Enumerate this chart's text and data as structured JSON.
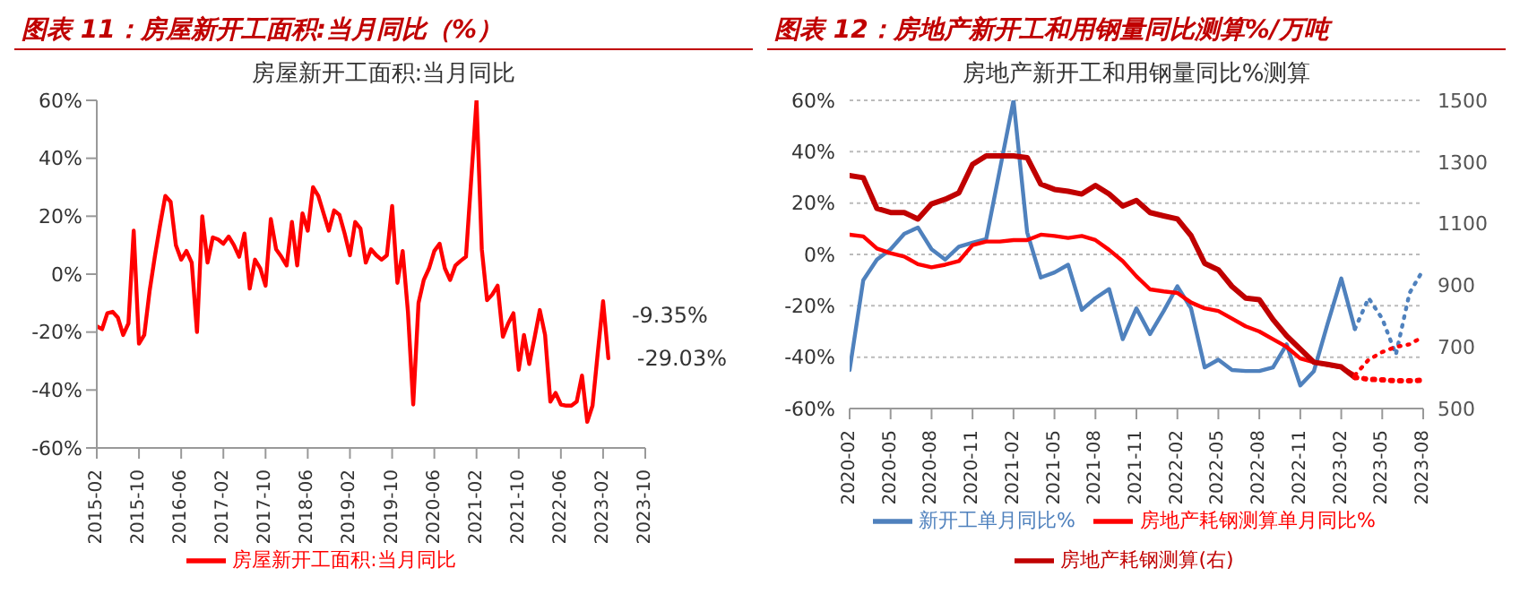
{
  "chart_data": [
    {
      "type": "line",
      "title": "图表 11：房屋新开工面积:当月同比（%）",
      "subtitle": "房屋新开工面积:当月同比",
      "legend": "bottom",
      "x": [
        "2015-02",
        "2015-03",
        "2015-04",
        "2015-05",
        "2015-06",
        "2015-07",
        "2015-08",
        "2015-09",
        "2015-10",
        "2015-11",
        "2015-12",
        "2016-01",
        "2016-02",
        "2016-03",
        "2016-04",
        "2016-05",
        "2016-06",
        "2016-07",
        "2016-08",
        "2016-09",
        "2016-10",
        "2016-11",
        "2016-12",
        "2017-01",
        "2017-02",
        "2017-03",
        "2017-04",
        "2017-05",
        "2017-06",
        "2017-07",
        "2017-08",
        "2017-09",
        "2017-10",
        "2017-11",
        "2017-12",
        "2018-01",
        "2018-02",
        "2018-03",
        "2018-04",
        "2018-05",
        "2018-06",
        "2018-07",
        "2018-08",
        "2018-09",
        "2018-10",
        "2018-11",
        "2018-12",
        "2019-01",
        "2019-02",
        "2019-03",
        "2019-04",
        "2019-05",
        "2019-06",
        "2019-07",
        "2019-08",
        "2019-09",
        "2019-10",
        "2019-11",
        "2019-12",
        "2020-01",
        "2020-02",
        "2020-03",
        "2020-04",
        "2020-05",
        "2020-06",
        "2020-07",
        "2020-08",
        "2020-09",
        "2020-10",
        "2020-11",
        "2020-12",
        "2021-01",
        "2021-02",
        "2021-03",
        "2021-04",
        "2021-05",
        "2021-06",
        "2021-07",
        "2021-08",
        "2021-09",
        "2021-10",
        "2021-11",
        "2021-12",
        "2022-01",
        "2022-02",
        "2022-03",
        "2022-04",
        "2022-05",
        "2022-06",
        "2022-07",
        "2022-08",
        "2022-09",
        "2022-10",
        "2022-11",
        "2022-12",
        "2023-01",
        "2023-02",
        "2023-03"
      ],
      "series": [
        {
          "name": "房屋新开工面积:当月同比",
          "color": "#ff0000",
          "values": [
            -18,
            -19,
            -13.5,
            -13,
            -15,
            -21,
            -17,
            15,
            -24,
            -21,
            -6,
            6,
            17,
            27,
            25,
            10,
            5,
            8,
            4,
            -20,
            20,
            4,
            12.7,
            12,
            10.5,
            13,
            10,
            6,
            14,
            -5,
            5,
            2,
            -4,
            19,
            8.6,
            6,
            3,
            18,
            3,
            21,
            15,
            30,
            27,
            21,
            15,
            22,
            20.5,
            14,
            6.5,
            18,
            15.7,
            4,
            8.6,
            6.5,
            5,
            6.5,
            23.5,
            -3,
            8,
            -13,
            -45,
            -10,
            -2,
            2,
            8,
            10.5,
            2,
            -2,
            3,
            4.6,
            6,
            33,
            60,
            8.6,
            -9,
            -7,
            -4,
            -21.6,
            -17,
            -13.5,
            -33,
            -21,
            -31,
            -22,
            -12.4,
            -21,
            -44,
            -41,
            -45,
            -45.4,
            -45.4,
            -44,
            -35,
            -51,
            -45.4,
            -27,
            -9.35,
            -29.03
          ]
        }
      ],
      "xlim": [
        "2015-02",
        "2023-10"
      ],
      "xticks": [
        "2015-02",
        "2015-10",
        "2016-06",
        "2017-02",
        "2017-10",
        "2018-06",
        "2019-02",
        "2019-10",
        "2020-06",
        "2021-02",
        "2021-10",
        "2022-06",
        "2023-02",
        "2023-10"
      ],
      "ylim": [
        -60,
        60
      ],
      "yticks": [
        {
          "value": -60,
          "label": "-60%"
        },
        {
          "value": -40,
          "label": "-40%"
        },
        {
          "value": -20,
          "label": "-20%"
        },
        {
          "value": 0,
          "label": "0%"
        },
        {
          "value": 20,
          "label": "20%"
        },
        {
          "value": 40,
          "label": "40%"
        },
        {
          "value": 60,
          "label": "60%"
        }
      ],
      "annotations": [
        {
          "text": "-9.35%",
          "x": "2023-02",
          "y": -9.35
        },
        {
          "text": "-29.03%",
          "x": "2023-03",
          "y": -29.03
        }
      ]
    },
    {
      "type": "line",
      "title": "图表 12：房地产新开工和用钢量同比测算%/万吨",
      "subtitle": "房地产新开工和用钢量同比%测算",
      "legend": "bottom",
      "grid": "y",
      "x": [
        "2020-02",
        "2020-03",
        "2020-04",
        "2020-05",
        "2020-06",
        "2020-07",
        "2020-08",
        "2020-09",
        "2020-10",
        "2020-11",
        "2020-12",
        "2021-01",
        "2021-02",
        "2021-03",
        "2021-04",
        "2021-05",
        "2021-06",
        "2021-07",
        "2021-08",
        "2021-09",
        "2021-10",
        "2021-11",
        "2021-12",
        "2022-01",
        "2022-02",
        "2022-03",
        "2022-04",
        "2022-05",
        "2022-06",
        "2022-07",
        "2022-08",
        "2022-09",
        "2022-10",
        "2022-11",
        "2022-12",
        "2023-01",
        "2023-02",
        "2023-03"
      ],
      "series": [
        {
          "name": "新开工单月同比%",
          "color": "#4f81bd",
          "values": [
            -45,
            -10,
            -2,
            2,
            8,
            10.5,
            2,
            -2,
            3,
            4.6,
            6,
            33,
            60,
            8.6,
            -9,
            -7,
            -4,
            -21.6,
            -17,
            -13.5,
            -33,
            -21,
            -31,
            -22,
            -12.4,
            -21,
            -44,
            -41,
            -45,
            -45.4,
            -45.4,
            -44,
            -35,
            -51,
            -45.4,
            -27,
            -9.35,
            -29.03
          ]
        },
        {
          "name": "房地产耗钢测算单月同比%",
          "color": "#ff0000",
          "values": [
            7.7,
            7,
            2.3,
            0.5,
            -0.8,
            -3.8,
            -5,
            -4,
            -2.6,
            3.6,
            5,
            5,
            5.6,
            5.6,
            7.7,
            7.2,
            6.4,
            7.2,
            5.6,
            1.8,
            -2.6,
            -8.5,
            -13.6,
            -14.4,
            -15,
            -18.7,
            -21,
            -22,
            -25,
            -28,
            -30,
            -33,
            -36,
            -40.5,
            -42,
            -43,
            -44,
            -47
          ]
        },
        {
          "name": "房地产耗钢测算(右)",
          "color": "#c00000",
          "axis": "y2",
          "values": [
            1256,
            1249,
            1149,
            1136,
            1136,
            1115,
            1164,
            1179,
            1200,
            1292,
            1320,
            1320,
            1320,
            1314,
            1228,
            1211,
            1205,
            1196,
            1224,
            1196,
            1157,
            1175,
            1136,
            1125,
            1115,
            1061,
            971,
            950,
            896,
            858,
            853,
            789,
            736,
            693,
            650,
            643,
            635,
            601
          ]
        },
        {
          "color": "#4f81bd",
          "line_style": "dotted",
          "x": [
            "2023-03",
            "2023-04",
            "2023-05",
            "2023-06",
            "2023-07",
            "2023-08"
          ],
          "values": [
            -29.03,
            -17,
            -25,
            -39,
            -15,
            -6
          ]
        },
        {
          "color": "#ff0000",
          "line_style": "dotted",
          "x": [
            "2023-03",
            "2023-04",
            "2023-05",
            "2023-06",
            "2023-07",
            "2023-08"
          ],
          "values": [
            -47,
            -41,
            -38,
            -36,
            -35,
            -32
          ]
        },
        {
          "color": "#ff0000",
          "line_style": "dotted",
          "axis": "y2",
          "x": [
            "2023-03",
            "2023-04",
            "2023-05",
            "2023-06",
            "2023-07",
            "2023-08"
          ],
          "values": [
            601,
            595,
            593,
            590,
            590,
            592
          ]
        }
      ],
      "xlim": [
        "2020-02",
        "2023-08"
      ],
      "xticks": [
        "2020-02",
        "2020-05",
        "2020-08",
        "2020-11",
        "2021-02",
        "2021-05",
        "2021-08",
        "2021-11",
        "2022-02",
        "2022-05",
        "2022-08",
        "2022-11",
        "2023-02",
        "2023-05",
        "2023-08"
      ],
      "ylim": [
        -60,
        60
      ],
      "yticks": [
        {
          "value": -60,
          "label": "-60%"
        },
        {
          "value": -40,
          "label": "-40%"
        },
        {
          "value": -20,
          "label": "-20%"
        },
        {
          "value": 0,
          "label": "0%"
        },
        {
          "value": 20,
          "label": "20%"
        },
        {
          "value": 40,
          "label": "40%"
        },
        {
          "value": 60,
          "label": "60%"
        }
      ],
      "y2lim": [
        500,
        1500
      ],
      "y2ticks": [
        500,
        700,
        900,
        1100,
        1300,
        1500
      ]
    }
  ]
}
